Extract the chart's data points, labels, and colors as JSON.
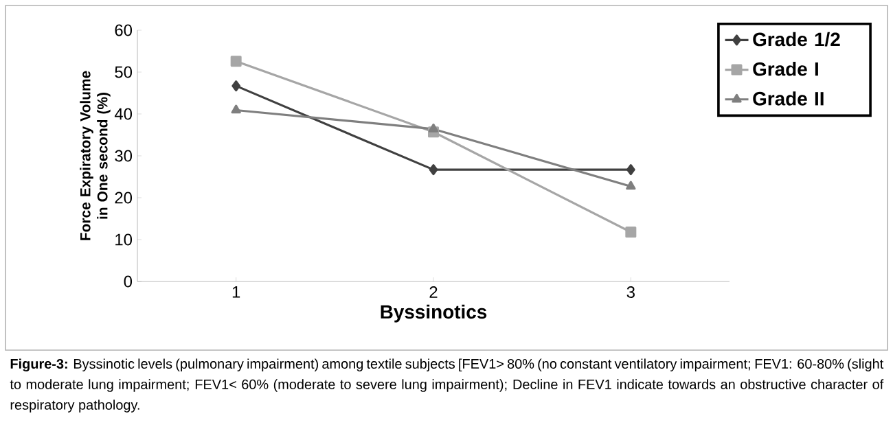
{
  "chart_data": {
    "type": "line",
    "xlabel": "Byssinotics",
    "ylabel": "Force Expiratory Volume in One second (%)",
    "categories": [
      "1",
      "2",
      "3"
    ],
    "series": [
      {
        "name": "Grade 1/2",
        "color": "#404040",
        "marker": "diamond",
        "values": [
          46.7,
          26.7,
          26.7
        ]
      },
      {
        "name": "Grade I",
        "color": "#a6a6a6",
        "marker": "square",
        "values": [
          52.6,
          35.7,
          11.8
        ]
      },
      {
        "name": "Grade II",
        "color": "#7f7f7f",
        "marker": "triangle",
        "values": [
          40.9,
          36.4,
          22.7
        ]
      }
    ],
    "ylim": [
      0,
      60
    ],
    "yticks": [
      0,
      10,
      20,
      30,
      40,
      50,
      60
    ],
    "grid": false,
    "legend": "top right",
    "annotations": [
      "**Figure-3:** Byssinotic levels (pulmonary impairment) among textile subjects [FEV1> 80% (no constant ventilatory impairment; FEV1: 60-80% (slight to moderate lung impairment; FEV1< 60% (moderate to severe lung impairment); Decline in FEV1 indicate towards an obstructive character of respiratory pathology."
    ]
  }
}
